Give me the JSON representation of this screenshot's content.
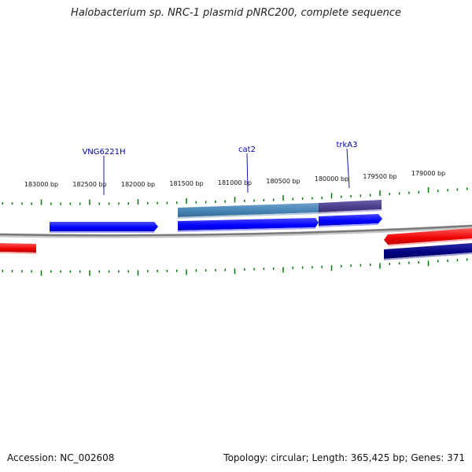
{
  "title": "Halobacterium sp. NRC-1 plasmid pNRC200, complete sequence",
  "footer": {
    "accession": "Accession: NC_002608",
    "summary": "Topology: circular; Length: 365,425 bp; Genes: 371"
  },
  "colors": {
    "forward_gene": "#0000ff",
    "reverse_gene_red": "#ee0000",
    "reverse_gene_navy": "#000080",
    "cds_steel": "#4682b4",
    "cds_purple": "#483d8b",
    "tick": "#007700",
    "backbone": "#808080",
    "label": "#0000aa"
  },
  "ticks": [
    {
      "label": "183000 bp"
    },
    {
      "label": "182500 bp"
    },
    {
      "label": "182000 bp"
    },
    {
      "label": "181500 bp"
    },
    {
      "label": "181000 bp"
    },
    {
      "label": "180500 bp"
    },
    {
      "label": "180000 bp"
    },
    {
      "label": "179500 bp"
    },
    {
      "label": "179000 bp"
    }
  ],
  "gene_labels": [
    {
      "name": "VNG6221H"
    },
    {
      "name": "cat2"
    },
    {
      "name": "trkA3"
    }
  ]
}
